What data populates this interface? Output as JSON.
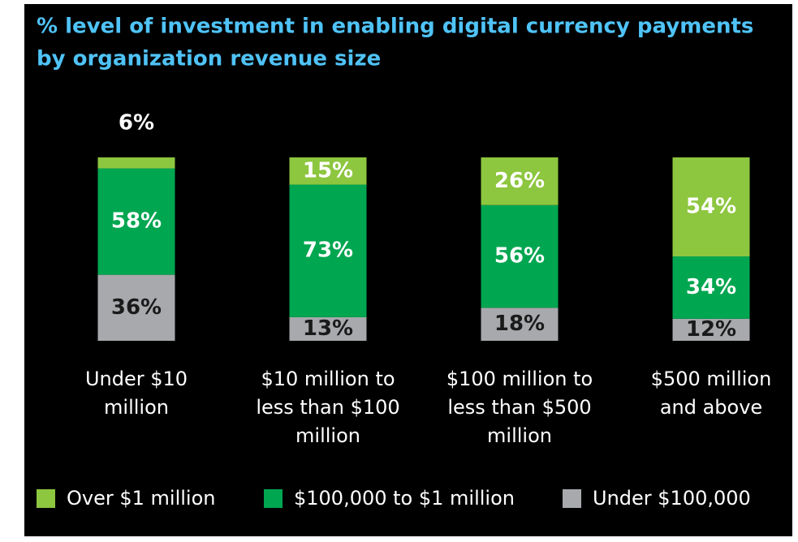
{
  "chart_data": {
    "type": "stacked_bar",
    "title": [
      "% level of investment in enabling digital currency payments",
      "by organization revenue size"
    ],
    "categories": [
      [
        "Under $10",
        "million"
      ],
      [
        "$10 million to",
        "less than $100",
        "million"
      ],
      [
        "$100 million to",
        "less than $500",
        "million"
      ],
      [
        "$500 million",
        "and above"
      ]
    ],
    "series": [
      {
        "name": "Over $1 million",
        "color": "#8dc63f",
        "values": [
          6,
          15,
          26,
          54
        ],
        "value_labels": [
          "6%",
          "15%",
          "26%",
          "54%"
        ]
      },
      {
        "name": "$100,000 to $1 million",
        "color": "#00a650",
        "values": [
          58,
          73,
          56,
          34
        ],
        "value_labels": [
          "58%",
          "73%",
          "56%",
          "34%"
        ]
      },
      {
        "name": "Under $100,000",
        "color": "#a7a9ac",
        "values": [
          36,
          13,
          18,
          12
        ],
        "value_labels": [
          "36%",
          "13%",
          "18%",
          "12%"
        ]
      }
    ]
  }
}
